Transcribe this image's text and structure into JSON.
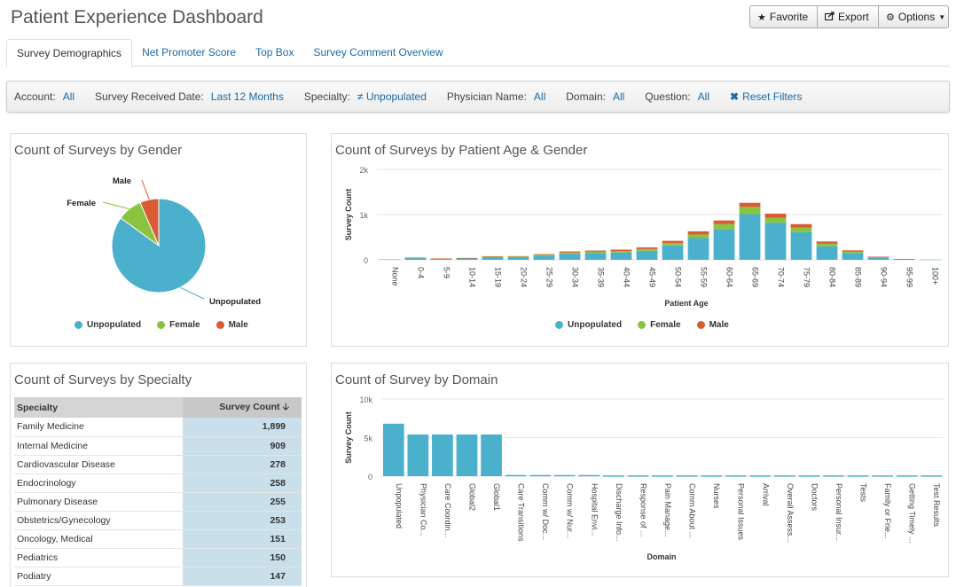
{
  "header": {
    "title": "Patient Experience Dashboard"
  },
  "toolbar": {
    "favorite": "Favorite",
    "export": "Export",
    "options": "Options"
  },
  "tabs": [
    "Survey Demographics",
    "Net Promoter Score",
    "Top Box",
    "Survey Comment Overview"
  ],
  "filters": [
    {
      "label": "Account:",
      "value": "All"
    },
    {
      "label": "Survey Received Date:",
      "value": "Last 12 Months"
    },
    {
      "label": "Specialty:",
      "value": "Unpopulated",
      "prefix": "≠"
    },
    {
      "label": "Physician Name:",
      "value": "All"
    },
    {
      "label": "Domain:",
      "value": "All"
    },
    {
      "label": "Question:",
      "value": "All"
    }
  ],
  "reset_filters": "Reset Filters",
  "colors": {
    "unpopulated": "#4ab0cc",
    "female": "#8ac43f",
    "male": "#d95b34",
    "link": "#1a6aa6"
  },
  "gender_panel": {
    "title": "Count of Surveys by Gender",
    "chart_data": {
      "type": "pie",
      "labels": [
        "Unpopulated",
        "Female",
        "Male"
      ],
      "values": [
        85,
        8.5,
        6.5
      ]
    }
  },
  "age_panel": {
    "title": "Count of Surveys by Patient Age & Gender",
    "chart_data": {
      "type": "bar",
      "stacked": true,
      "xlabel": "Patient Age",
      "ylabel": "Survey Count",
      "ylim": [
        0,
        2000
      ],
      "yticks": [
        "0",
        "1k",
        "2k"
      ],
      "categories": [
        "None",
        "0-4",
        "5-9",
        "10-14",
        "15-19",
        "20-24",
        "25-29",
        "30-34",
        "35-39",
        "40-44",
        "45-49",
        "50-54",
        "55-59",
        "60-64",
        "65-69",
        "70-74",
        "75-79",
        "80-84",
        "85-89",
        "90-94",
        "95-99",
        "100+"
      ],
      "series": [
        {
          "name": "Unpopulated",
          "values": [
            10,
            40,
            25,
            35,
            60,
            60,
            90,
            130,
            150,
            160,
            200,
            320,
            480,
            680,
            1010,
            820,
            610,
            300,
            150,
            50,
            15,
            5
          ]
        },
        {
          "name": "Female",
          "values": [
            0,
            5,
            3,
            4,
            10,
            12,
            20,
            30,
            30,
            35,
            40,
            50,
            80,
            110,
            160,
            110,
            100,
            55,
            30,
            10,
            3,
            0
          ]
        },
        {
          "name": "Male",
          "values": [
            0,
            3,
            2,
            3,
            10,
            10,
            15,
            25,
            25,
            30,
            35,
            50,
            70,
            80,
            90,
            90,
            80,
            50,
            30,
            10,
            2,
            0
          ]
        }
      ]
    }
  },
  "specialty_panel": {
    "title": "Count of Surveys by Specialty",
    "columns": [
      "Specialty",
      "Survey Count"
    ],
    "rows": [
      [
        "Family Medicine",
        "1,899"
      ],
      [
        "Internal Medicine",
        "909"
      ],
      [
        "Cardiovascular Disease",
        "278"
      ],
      [
        "Endocrinology",
        "258"
      ],
      [
        "Pulmonary Disease",
        "255"
      ],
      [
        "Obstetrics/Gynecology",
        "253"
      ],
      [
        "Oncology, Medical",
        "151"
      ],
      [
        "Pediatrics",
        "150"
      ],
      [
        "Podiatry",
        "147"
      ]
    ]
  },
  "domain_panel": {
    "title": "Count of Survey by Domain",
    "chart_data": {
      "type": "bar",
      "xlabel": "Domain",
      "ylabel": "Survey Count",
      "ylim": [
        0,
        10000
      ],
      "yticks": [
        "0",
        "5k",
        "10k"
      ],
      "categories": [
        "Unpopulated",
        "Physician Co...",
        "Care Coordin...",
        "Global2",
        "Global1",
        "Care Transitions",
        "Comm w/ Doc...",
        "Comm w/ Nur...",
        "Hospital Envi...",
        "Discharge Info...",
        "Response of ...",
        "Pain Manage...",
        "Comm About ...",
        "Nurses",
        "Personal Issues",
        "Arrival",
        "Overall Assess...",
        "Doctors",
        "Personal Insur...",
        "Tests",
        "Family or Frie...",
        "Getting Timely ...",
        "Test Results"
      ],
      "values": [
        6800,
        5400,
        5400,
        5400,
        5400,
        150,
        150,
        150,
        150,
        100,
        100,
        100,
        100,
        100,
        100,
        100,
        100,
        100,
        100,
        100,
        100,
        100,
        100
      ]
    }
  }
}
